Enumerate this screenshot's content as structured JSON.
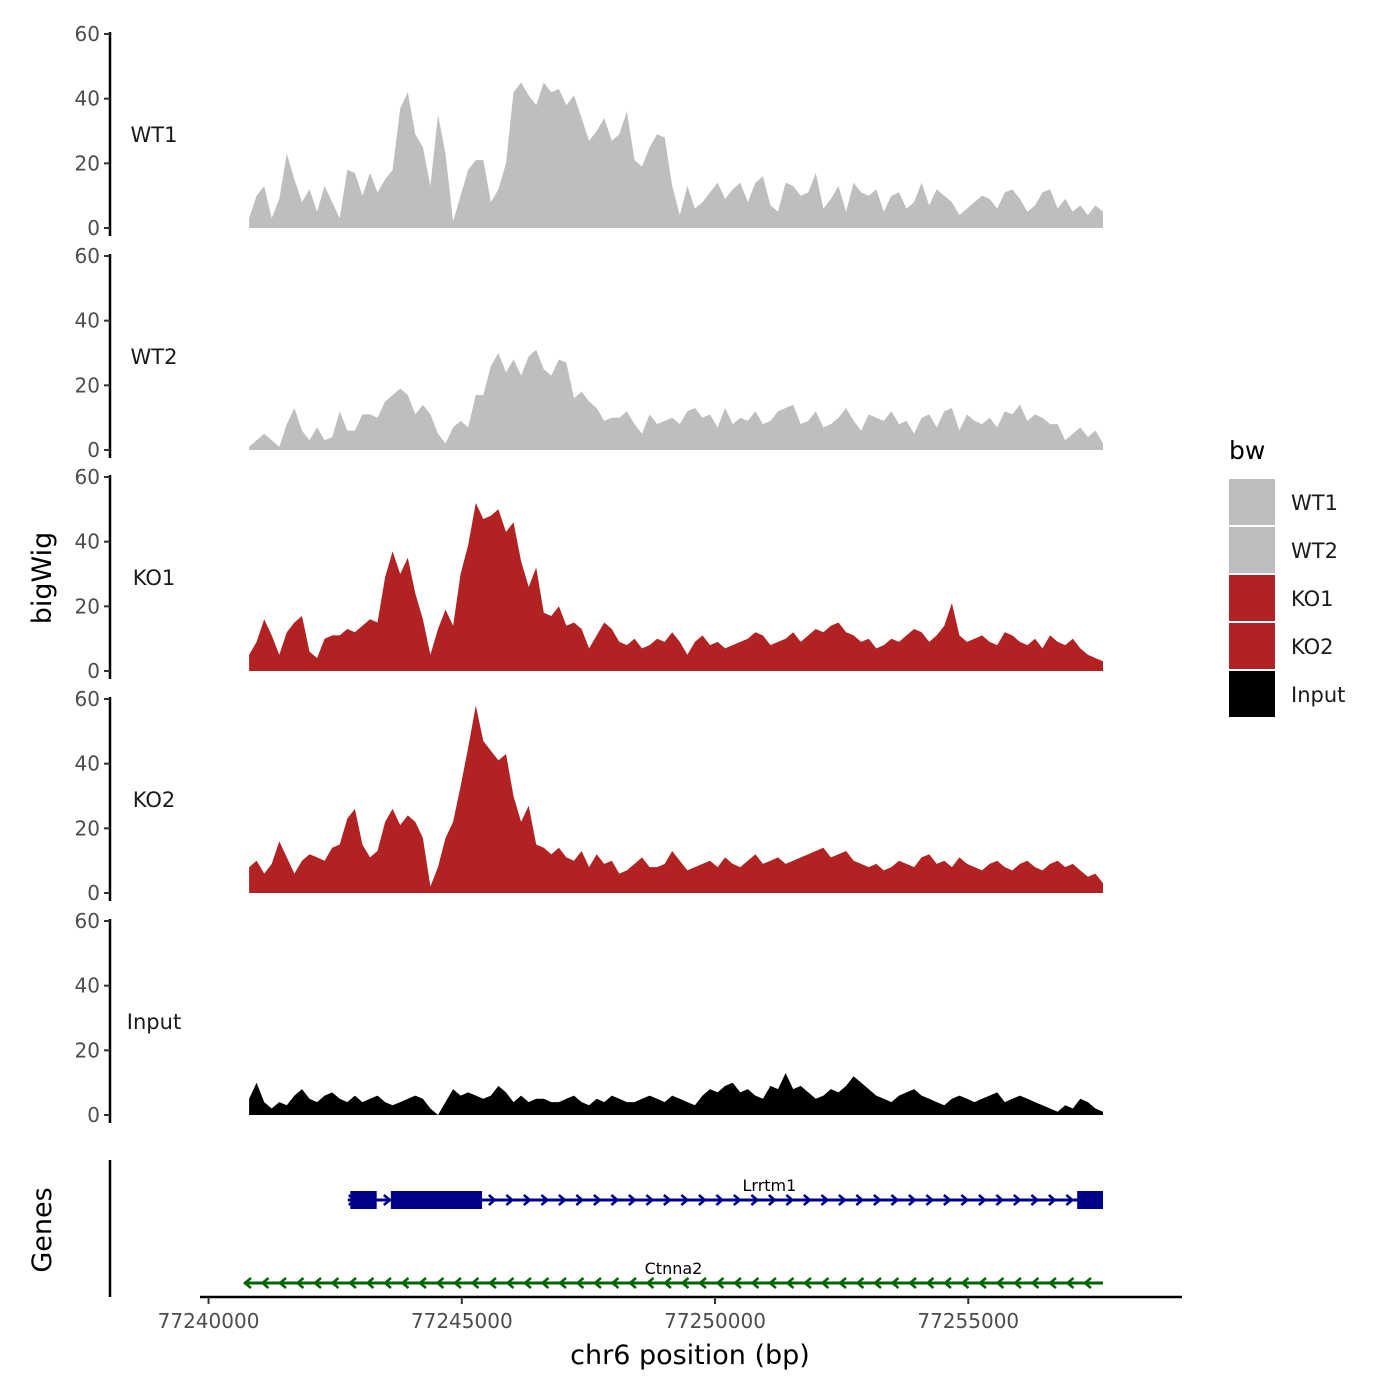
{
  "chart_data": {
    "type": "area",
    "title": "",
    "xlabel": "chr6 position (bp)",
    "ylabel": "bigWig",
    "gene_track_label": "Genes",
    "xlim": [
      77239950,
      77259200
    ],
    "x_range": [
      77240800,
      77257660
    ],
    "x_ticks": [
      77240000,
      77245000,
      77250000,
      77255000
    ],
    "x_tick_labels": [
      "77240000",
      "77245000",
      "77250000",
      "77255000"
    ],
    "ylim": [
      0,
      60
    ],
    "y_ticks": [
      0,
      20,
      40,
      60
    ],
    "y_tick_labels": [
      "0",
      "20",
      "40",
      "60"
    ],
    "grid": false,
    "legend": {
      "title": "bw",
      "position": "right",
      "entries": [
        {
          "label": "WT1",
          "color": "#bebebe"
        },
        {
          "label": "WT2",
          "color": "#bebebe"
        },
        {
          "label": "KO1",
          "color": "#b22222"
        },
        {
          "label": "KO2",
          "color": "#b22222"
        },
        {
          "label": "Input",
          "color": "#000000"
        }
      ]
    },
    "series": [
      {
        "name": "WT1",
        "color": "#bebebe",
        "values": [
          3,
          10,
          13,
          3,
          9,
          23,
          15,
          8,
          12,
          5,
          13,
          8,
          3,
          18,
          17,
          10,
          17,
          11,
          15,
          18,
          37,
          42,
          29,
          25,
          13,
          35,
          23,
          2,
          10,
          18,
          21,
          21,
          8,
          12,
          20,
          42,
          45,
          41,
          38,
          45,
          42,
          43,
          38,
          41,
          34,
          27,
          30,
          34,
          27,
          29,
          36,
          21,
          19,
          25,
          29,
          28,
          13,
          4,
          13,
          6,
          8,
          11,
          14,
          9,
          12,
          14,
          8,
          14,
          16,
          7,
          5,
          14,
          13,
          10,
          11,
          17,
          6,
          9,
          13,
          5,
          14,
          11,
          10,
          12,
          5,
          10,
          11,
          6,
          8,
          14,
          7,
          12,
          10,
          8,
          4,
          6,
          8,
          10,
          9,
          6,
          11,
          12,
          9,
          5,
          7,
          11,
          12,
          6,
          9,
          5,
          7,
          4,
          7,
          5
        ]
      },
      {
        "name": "WT2",
        "color": "#bebebe",
        "values": [
          1,
          3,
          5,
          3,
          1,
          8,
          13,
          6,
          3,
          7,
          3,
          4,
          12,
          6,
          6,
          11,
          11,
          10,
          15,
          17,
          19,
          17,
          11,
          14,
          11,
          5,
          2,
          7,
          9,
          7,
          17,
          17,
          26,
          30,
          24,
          28,
          23,
          29,
          31,
          25,
          23,
          28,
          27,
          16,
          18,
          15,
          13,
          9,
          10,
          10,
          12,
          8,
          5,
          11,
          8,
          9,
          10,
          8,
          12,
          13,
          10,
          11,
          7,
          13,
          8,
          10,
          9,
          12,
          8,
          9,
          12,
          13,
          14,
          8,
          9,
          12,
          7,
          8,
          10,
          13,
          9,
          6,
          11,
          10,
          9,
          12,
          8,
          9,
          5,
          10,
          11,
          7,
          12,
          13,
          6,
          11,
          9,
          8,
          10,
          7,
          12,
          11,
          14,
          9,
          11,
          10,
          8,
          8,
          3,
          5,
          7,
          4,
          6,
          2
        ]
      },
      {
        "name": "KO1",
        "color": "#b22222",
        "values": [
          5,
          9,
          16,
          11,
          5,
          12,
          15,
          17,
          6,
          4,
          10,
          11,
          11,
          13,
          12,
          14,
          16,
          15,
          29,
          37,
          30,
          35,
          24,
          16,
          5,
          13,
          19,
          14,
          30,
          39,
          52,
          47,
          48,
          50,
          43,
          46,
          34,
          26,
          32,
          18,
          17,
          20,
          14,
          15,
          13,
          7,
          11,
          15,
          13,
          9,
          8,
          10,
          7,
          8,
          10,
          9,
          12,
          9,
          5,
          9,
          11,
          8,
          9,
          7,
          8,
          9,
          10,
          12,
          11,
          8,
          9,
          10,
          12,
          9,
          11,
          13,
          12,
          14,
          15,
          12,
          11,
          9,
          10,
          7,
          8,
          10,
          9,
          11,
          13,
          12,
          9,
          11,
          14,
          21,
          11,
          9,
          10,
          11,
          9,
          8,
          12,
          11,
          9,
          8,
          10,
          7,
          11,
          9,
          8,
          10,
          7,
          5,
          4,
          3
        ]
      },
      {
        "name": "KO2",
        "color": "#b22222",
        "values": [
          8,
          10,
          6,
          9,
          16,
          11,
          6,
          10,
          12,
          11,
          10,
          14,
          15,
          23,
          26,
          15,
          11,
          13,
          22,
          26,
          21,
          24,
          22,
          17,
          2,
          8,
          17,
          22,
          33,
          45,
          58,
          47,
          44,
          41,
          43,
          30,
          22,
          27,
          15,
          14,
          12,
          14,
          11,
          10,
          13,
          8,
          12,
          9,
          10,
          6,
          7,
          9,
          11,
          8,
          8,
          9,
          13,
          10,
          7,
          8,
          9,
          10,
          8,
          11,
          9,
          8,
          10,
          12,
          9,
          10,
          11,
          9,
          10,
          11,
          12,
          13,
          14,
          11,
          12,
          13,
          10,
          9,
          8,
          9,
          7,
          8,
          10,
          9,
          8,
          11,
          12,
          9,
          10,
          8,
          11,
          9,
          8,
          7,
          9,
          10,
          8,
          7,
          9,
          10,
          8,
          7,
          9,
          10,
          8,
          9,
          7,
          5,
          6,
          3
        ]
      },
      {
        "name": "Input",
        "color": "#000000",
        "values": [
          5,
          10,
          4,
          2,
          4,
          3,
          6,
          8,
          5,
          4,
          6,
          7,
          5,
          4,
          6,
          4,
          5,
          6,
          4,
          3,
          4,
          5,
          6,
          5,
          2,
          0,
          4,
          8,
          6,
          7,
          6,
          5,
          6,
          9,
          7,
          4,
          6,
          4,
          5,
          5,
          4,
          4,
          5,
          6,
          4,
          3,
          5,
          4,
          6,
          5,
          4,
          4,
          5,
          6,
          5,
          4,
          6,
          5,
          4,
          3,
          6,
          8,
          7,
          9,
          10,
          7,
          8,
          6,
          5,
          9,
          8,
          13,
          8,
          9,
          7,
          5,
          6,
          8,
          7,
          9,
          12,
          10,
          8,
          6,
          5,
          4,
          6,
          7,
          8,
          6,
          5,
          4,
          3,
          5,
          6,
          5,
          4,
          5,
          6,
          7,
          4,
          5,
          6,
          5,
          4,
          3,
          2,
          1,
          3,
          2,
          5,
          4,
          2,
          1
        ]
      }
    ],
    "genes": [
      {
        "name": "Lrrtm1",
        "strand": "+",
        "color": "#00008b",
        "start": 77242750,
        "end": 77257660,
        "exons": [
          [
            77242800,
            77243320
          ],
          [
            77243600,
            77245400
          ],
          [
            77257150,
            77257660
          ]
        ]
      },
      {
        "name": "Ctnna2",
        "strand": "-",
        "color": "#006400",
        "start": 77240700,
        "end": 77257660,
        "exons": []
      }
    ]
  }
}
